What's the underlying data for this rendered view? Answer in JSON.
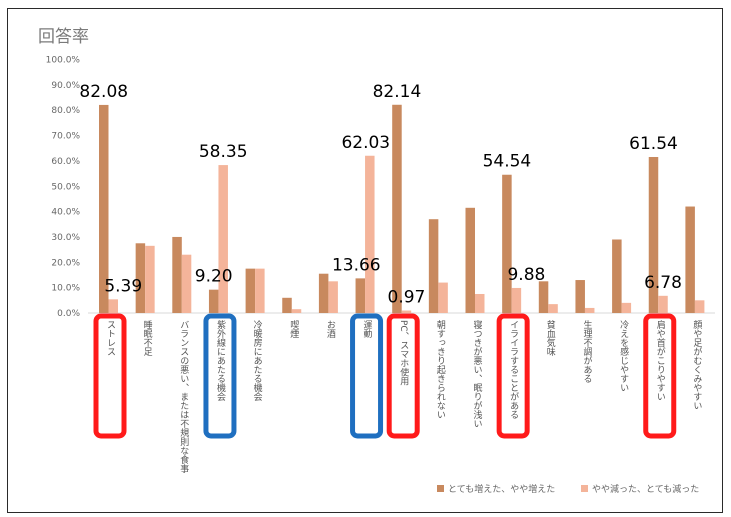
{
  "chart_data": {
    "type": "bar",
    "title": "回答率",
    "ylim": [
      0,
      100
    ],
    "yticks": [
      "0.0%",
      "10.0%",
      "20.0%",
      "30.0%",
      "40.0%",
      "50.0%",
      "60.0%",
      "70.0%",
      "80.0%",
      "90.0%",
      "100.0%"
    ],
    "grid": false,
    "legend_position": "bottom-right",
    "categories": [
      "ストレス",
      "睡眠不足",
      "バランスの悪い、または不規則な食事",
      "紫外線にあたる機会",
      "冷暖房にあたる機会",
      "喫煙",
      "お酒",
      "運動",
      "PC、スマホ使用",
      "朝すっきり起きられない",
      "寝つきが悪い、眠りが浅い",
      "イライラすることがある",
      "貧血気味",
      "生理不調がある",
      "冷えを感じやすい",
      "肩や首がこりやすい",
      "顔や足がむくみやすい"
    ],
    "series": [
      {
        "name": "とても増えた、やや増えた",
        "color": "#c8895e",
        "values": [
          82.08,
          27.5,
          30.0,
          9.2,
          17.5,
          6.0,
          15.5,
          13.66,
          82.14,
          37.0,
          41.5,
          54.54,
          12.5,
          13.0,
          29.0,
          61.54,
          42.0
        ]
      },
      {
        "name": "やや減った、とても減った",
        "color": "#f4b49a",
        "values": [
          5.39,
          26.5,
          23.0,
          58.35,
          17.5,
          1.5,
          12.5,
          62.03,
          0.97,
          12.0,
          7.5,
          9.88,
          3.5,
          2.0,
          4.0,
          6.78,
          5.0
        ]
      }
    ],
    "data_labels": [
      {
        "text": "82.08"
      },
      {
        "text": "5.39"
      },
      {
        "text": "58.35"
      },
      {
        "text": "9.20"
      },
      {
        "text": "62.03"
      },
      {
        "text": "13.66"
      },
      {
        "text": "82.14"
      },
      {
        "text": "0.97"
      },
      {
        "text": "54.54"
      },
      {
        "text": "9.88"
      },
      {
        "text": "61.54"
      },
      {
        "text": "6.78"
      }
    ],
    "highlights": [
      {
        "category": "ストレス",
        "color": "#ff1a1a"
      },
      {
        "category": "紫外線にあたる機会",
        "color": "#1f6fc0"
      },
      {
        "category": "運動",
        "color": "#1f6fc0"
      },
      {
        "category": "PC、スマホ使用",
        "color": "#ff1a1a"
      },
      {
        "category": "イライラすることがある",
        "color": "#ff1a1a"
      },
      {
        "category": "肩や首がこりやすい",
        "color": "#ff1a1a"
      }
    ]
  }
}
